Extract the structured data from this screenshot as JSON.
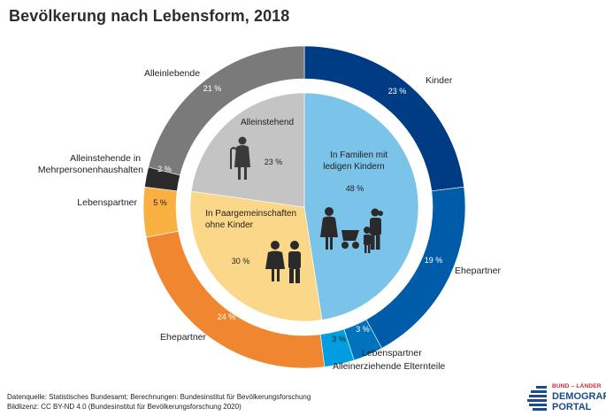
{
  "title": "Bevölkerung nach Lebensform, 2018",
  "chart_data": {
    "type": "pie",
    "title": "Bevölkerung nach Lebensform, 2018",
    "unit": "%",
    "inner_ring": [
      {
        "label": "In Familien mit ledigen Kindern",
        "value": 48,
        "value_label": "48 %",
        "color": "#7cc3ea"
      },
      {
        "label": "In Paargemeinschaften ohne Kinder",
        "value": 30,
        "value_label": "30 %",
        "color": "#fbd78a"
      },
      {
        "label": "Alleinstehend",
        "value": 23,
        "value_label": "23 %",
        "color": "#c4c4c4"
      }
    ],
    "outer_ring": [
      {
        "label": "Kinder",
        "value": 23,
        "value_label": "23 %",
        "color": "#003c83"
      },
      {
        "label": "Ehepartner",
        "value": 19,
        "value_label": "19 %",
        "color": "#005ca9"
      },
      {
        "label": "Lebenspartner",
        "value": 3,
        "value_label": "3 %",
        "color": "#0073bd"
      },
      {
        "label": "Alleinerziehende Elternteile",
        "value": 3,
        "value_label": "3 %",
        "color": "#009ee0"
      },
      {
        "label": "Ehepartner",
        "value": 24,
        "value_label": "24 %",
        "color": "#f08730"
      },
      {
        "label": "Lebenspartner",
        "value": 5,
        "value_label": "5 %",
        "color": "#fab040"
      },
      {
        "label": "Alleinstehende in Mehrpersonenhaushalten",
        "value": 2,
        "value_label": "2 %",
        "color": "#2b2b2b"
      },
      {
        "label": "Alleinlebende",
        "value": 21,
        "value_label": "21 %",
        "color": "#7a7a7a"
      }
    ]
  },
  "footer": {
    "source": "Datenquelle: Statistisches Bundesamt; Berechnungen: Bundesinstitut für Bevölkerungsforschung",
    "license": "Bildlizenz: CC BY-ND 4.0 (Bundesinstitut für Bevölkerungsforschung 2020)"
  },
  "logo": {
    "line1": "BUND – LÄNDER",
    "line2": "DEMOGRAFIE",
    "line3": "PORTAL",
    "color": "#1b4b8c",
    "accent": "#d9272e"
  },
  "icons": [
    "elderly-woman-icon",
    "couple-icon",
    "family-icon"
  ]
}
